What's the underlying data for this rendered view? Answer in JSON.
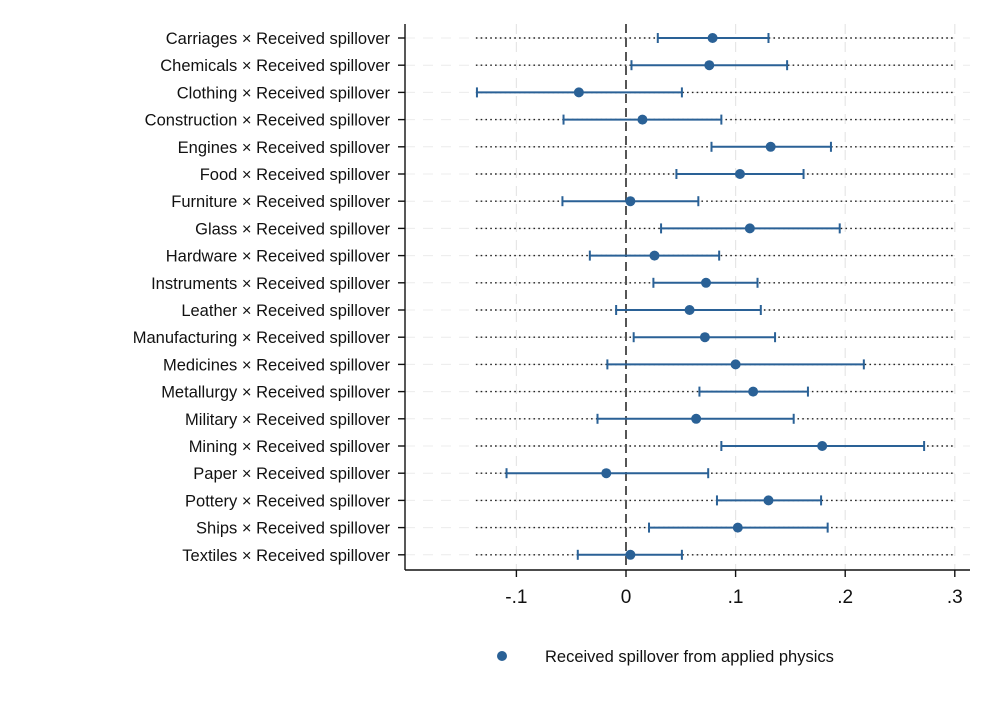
{
  "chart_data": {
    "type": "scatter",
    "orientation": "horizontal",
    "categories": [
      "Carriages × Received spillover",
      "Chemicals × Received spillover",
      "Clothing × Received spillover",
      "Construction × Received spillover",
      "Engines × Received spillover",
      "Food × Received spillover",
      "Furniture × Received spillover",
      "Glass × Received spillover",
      "Hardware × Received spillover",
      "Instruments × Received spillover",
      "Leather × Received spillover",
      "Manufacturing × Received spillover",
      "Medicines × Received spillover",
      "Metallurgy × Received spillover",
      "Military × Received spillover",
      "Mining × Received spillover",
      "Paper × Received spillover",
      "Pottery × Received spillover",
      "Ships × Received spillover",
      "Textiles × Received spillover"
    ],
    "series": [
      {
        "name": "Received spillover from applied physics",
        "color": "#2a6196",
        "estimates": [
          0.079,
          0.076,
          -0.043,
          0.015,
          0.132,
          0.104,
          0.004,
          0.113,
          0.026,
          0.073,
          0.058,
          0.072,
          0.1,
          0.116,
          0.064,
          0.179,
          -0.018,
          0.13,
          0.102,
          0.004
        ],
        "ci_low": [
          0.029,
          0.005,
          -0.136,
          -0.057,
          0.078,
          0.046,
          -0.058,
          0.032,
          -0.033,
          0.025,
          -0.009,
          0.007,
          -0.017,
          0.067,
          -0.026,
          0.087,
          -0.109,
          0.083,
          0.021,
          -0.044
        ],
        "ci_high": [
          0.13,
          0.147,
          0.051,
          0.087,
          0.187,
          0.162,
          0.066,
          0.195,
          0.085,
          0.12,
          0.123,
          0.136,
          0.217,
          0.166,
          0.153,
          0.272,
          0.075,
          0.178,
          0.184,
          0.051
        ]
      }
    ],
    "xlim": [
      -0.2,
      0.31
    ],
    "xticks": [
      -0.1,
      0,
      0.1,
      0.2,
      0.3
    ],
    "xtick_labels": [
      "-.1",
      "0",
      ".1",
      ".2",
      ".3"
    ],
    "reference_line": 0,
    "grid": true,
    "row_guides": "dotted",
    "row_guide_range": [
      -0.137,
      0.3
    ],
    "legend_position": "bottom"
  }
}
